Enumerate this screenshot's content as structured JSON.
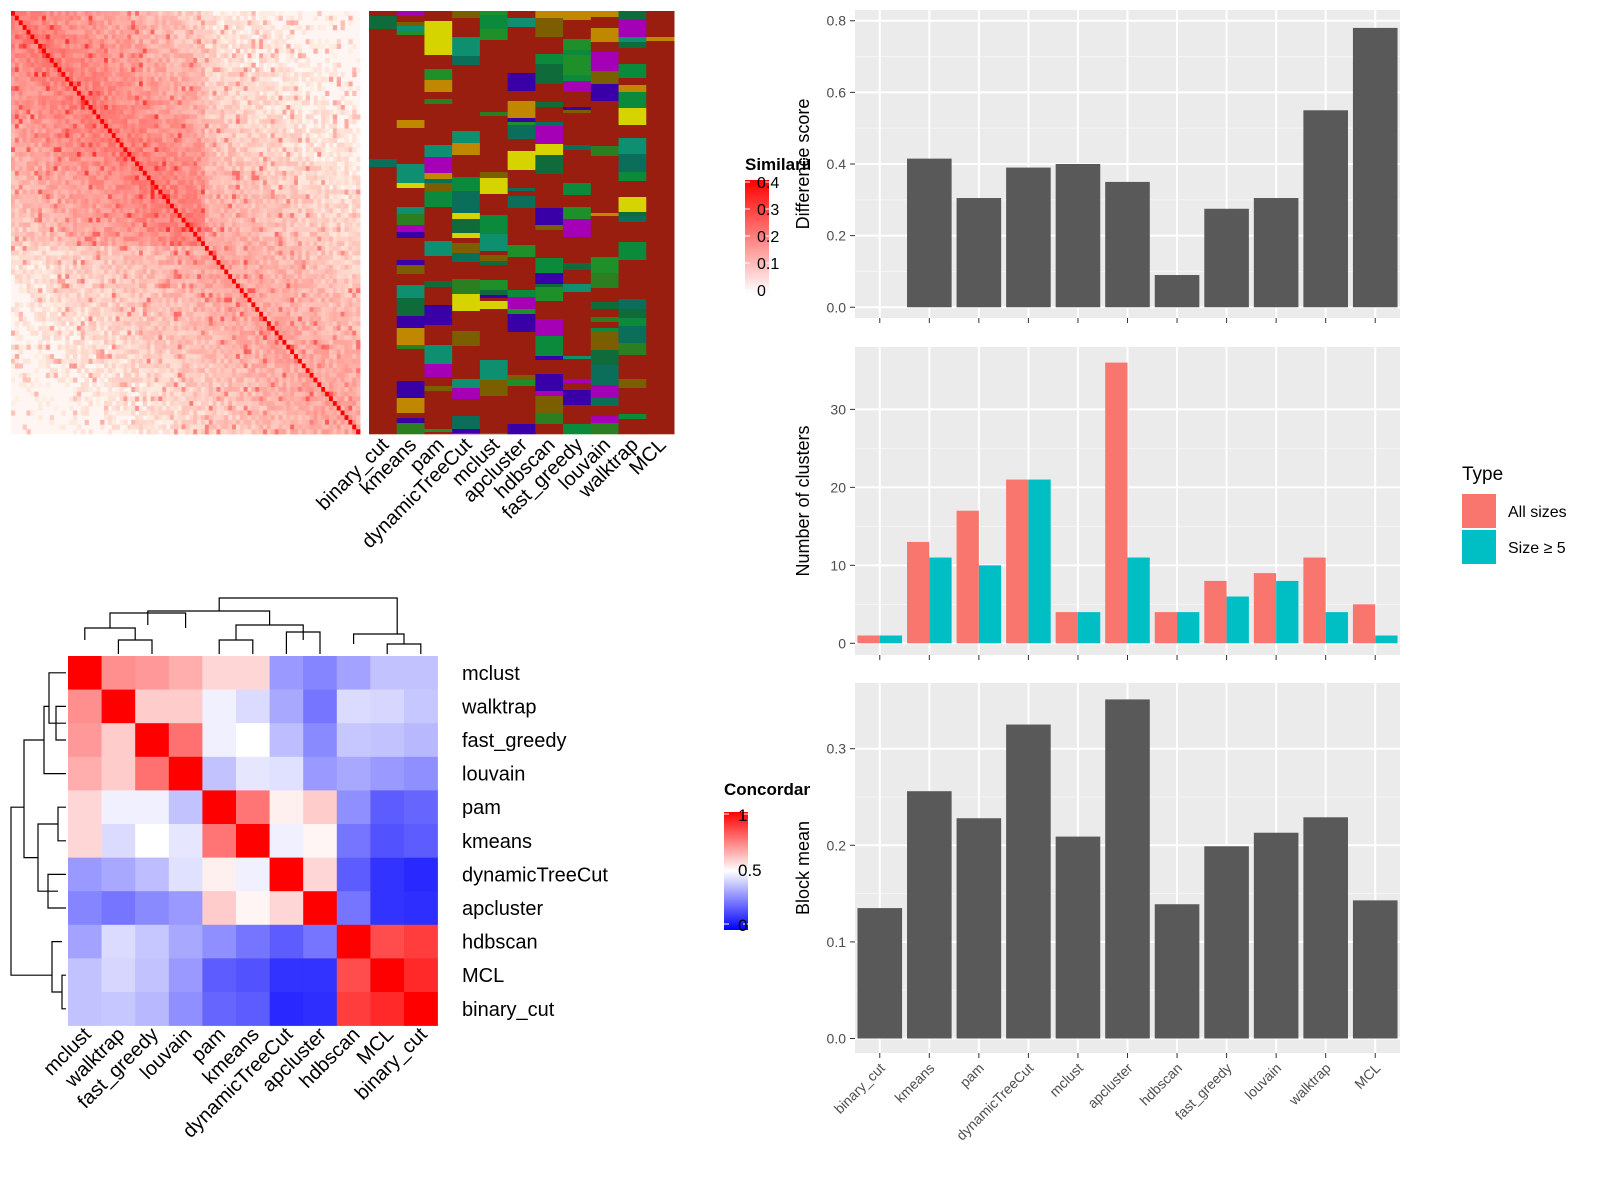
{
  "similarity_legend": {
    "title": "Similarity",
    "ticks": [
      "0.4",
      "0.3",
      "0.2",
      "0.1",
      "0"
    ]
  },
  "concordance_legend": {
    "title": "Concordance",
    "ticks": [
      "1",
      "0.5",
      "0"
    ]
  },
  "methods": [
    "binary_cut",
    "kmeans",
    "pam",
    "dynamicTreeCut",
    "mclust",
    "apcluster",
    "hdbscan",
    "fast_greedy",
    "louvain",
    "walktrap",
    "MCL"
  ],
  "heat_order": [
    "mclust",
    "walktrap",
    "fast_greedy",
    "louvain",
    "pam",
    "kmeans",
    "dynamicTreeCut",
    "apcluster",
    "hdbscan",
    "MCL",
    "binary_cut"
  ],
  "colors": {
    "panel_bg": "#ebebeb",
    "bar": "#595959",
    "all_sizes": "#f8766d",
    "size_ge5": "#00bfc4",
    "high": "#ff0000",
    "low": "#0000ff"
  },
  "chart_data": [
    {
      "type": "bar",
      "categories": [
        "binary_cut",
        "kmeans",
        "pam",
        "dynamicTreeCut",
        "mclust",
        "apcluster",
        "hdbscan",
        "fast_greedy",
        "louvain",
        "walktrap",
        "MCL"
      ],
      "values": [
        0.0,
        0.415,
        0.305,
        0.39,
        0.4,
        0.35,
        0.09,
        0.275,
        0.305,
        0.55,
        0.78
      ],
      "ylabel": "Difference score",
      "ylim": [
        -0.03,
        0.83
      ],
      "yticks": [
        "0.0",
        "0.2",
        "0.4",
        "0.6",
        "0.8"
      ],
      "grid": true
    },
    {
      "type": "bar",
      "categories": [
        "binary_cut",
        "kmeans",
        "pam",
        "dynamicTreeCut",
        "mclust",
        "apcluster",
        "hdbscan",
        "fast_greedy",
        "louvain",
        "walktrap",
        "MCL"
      ],
      "series": [
        {
          "name": "All sizes",
          "values": [
            1,
            13,
            17,
            21,
            4,
            36,
            4,
            8,
            9,
            11,
            5
          ]
        },
        {
          "name": "Size ≥ 5",
          "values": [
            1,
            11,
            10,
            21,
            4,
            11,
            4,
            6,
            8,
            4,
            1
          ]
        }
      ],
      "ylabel": "Number of clusters",
      "ylim": [
        -1.5,
        38
      ],
      "yticks": [
        "0",
        "10",
        "20",
        "30"
      ],
      "legend_title": "Type",
      "legend_position": "right",
      "grid": true
    },
    {
      "type": "bar",
      "categories": [
        "binary_cut",
        "kmeans",
        "pam",
        "dynamicTreeCut",
        "mclust",
        "apcluster",
        "hdbscan",
        "fast_greedy",
        "louvain",
        "walktrap",
        "MCL"
      ],
      "values": [
        0.135,
        0.256,
        0.228,
        0.325,
        0.209,
        0.351,
        0.139,
        0.199,
        0.213,
        0.229,
        0.143
      ],
      "ylabel": "Block mean",
      "ylim": [
        -0.015,
        0.368
      ],
      "yticks": [
        "0.0",
        "0.1",
        "0.2",
        "0.3"
      ],
      "grid": true
    },
    {
      "type": "heatmap",
      "rows": [
        "mclust",
        "walktrap",
        "fast_greedy",
        "louvain",
        "pam",
        "kmeans",
        "dynamicTreeCut",
        "apcluster",
        "hdbscan",
        "MCL",
        "binary_cut"
      ],
      "columns": [
        "mclust",
        "walktrap",
        "fast_greedy",
        "louvain",
        "pam",
        "kmeans",
        "dynamicTreeCut",
        "apcluster",
        "hdbscan",
        "MCL",
        "binary_cut"
      ],
      "values": [
        [
          1.0,
          0.72,
          0.7,
          0.66,
          0.58,
          0.58,
          0.3,
          0.26,
          0.32,
          0.38,
          0.38
        ],
        [
          0.72,
          1.0,
          0.6,
          0.6,
          0.47,
          0.43,
          0.33,
          0.23,
          0.43,
          0.42,
          0.39
        ],
        [
          0.7,
          0.6,
          1.0,
          0.78,
          0.47,
          0.5,
          0.37,
          0.27,
          0.39,
          0.38,
          0.36
        ],
        [
          0.66,
          0.6,
          0.78,
          1.0,
          0.38,
          0.45,
          0.44,
          0.3,
          0.33,
          0.3,
          0.28
        ],
        [
          0.58,
          0.47,
          0.47,
          0.38,
          1.0,
          0.77,
          0.53,
          0.6,
          0.28,
          0.18,
          0.2
        ],
        [
          0.58,
          0.43,
          0.5,
          0.45,
          0.77,
          1.0,
          0.47,
          0.52,
          0.23,
          0.16,
          0.18
        ],
        [
          0.3,
          0.33,
          0.37,
          0.44,
          0.53,
          0.47,
          1.0,
          0.58,
          0.18,
          0.1,
          0.08
        ],
        [
          0.26,
          0.23,
          0.27,
          0.3,
          0.6,
          0.52,
          0.58,
          1.0,
          0.23,
          0.1,
          0.09
        ],
        [
          0.32,
          0.43,
          0.39,
          0.33,
          0.28,
          0.23,
          0.18,
          0.23,
          1.0,
          0.85,
          0.88
        ],
        [
          0.38,
          0.42,
          0.38,
          0.3,
          0.18,
          0.16,
          0.1,
          0.1,
          0.85,
          1.0,
          0.92
        ],
        [
          0.38,
          0.39,
          0.36,
          0.28,
          0.2,
          0.18,
          0.08,
          0.09,
          0.88,
          0.92,
          1.0
        ]
      ],
      "legend_title": "Concordance",
      "scale": [
        0,
        1
      ]
    }
  ]
}
